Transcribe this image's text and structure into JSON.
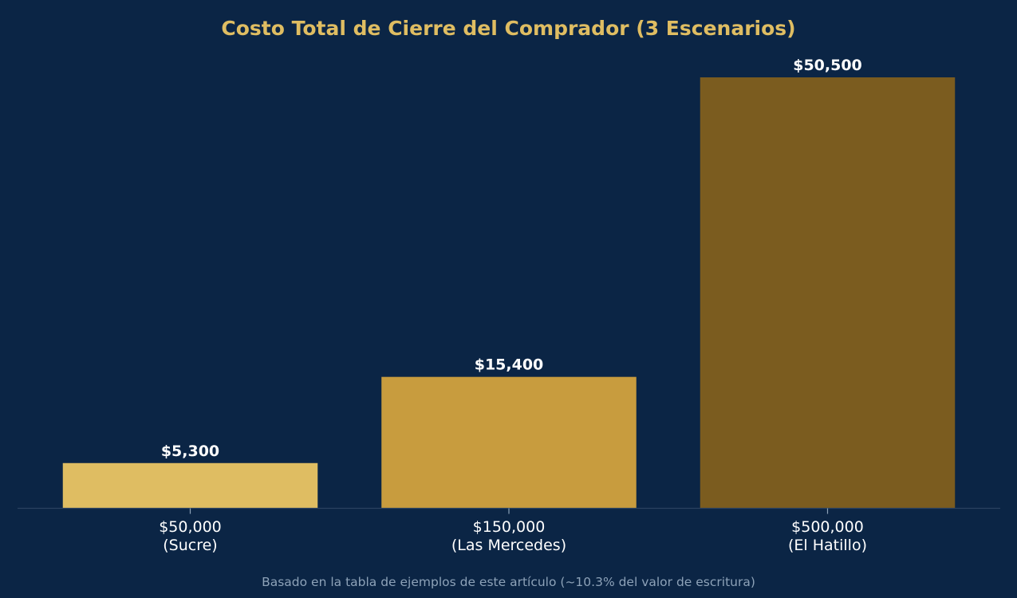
{
  "chart_data": {
    "type": "bar",
    "title": "Costo Total de Cierre del Comprador (3 Escenarios)",
    "categories": [
      [
        "$50,000",
        "(Sucre)"
      ],
      [
        "$150,000",
        "(Las Mercedes)"
      ],
      [
        "$500,000",
        "(El Hatillo)"
      ]
    ],
    "values": [
      5300,
      15400,
      50500
    ],
    "value_labels": [
      "$5,300",
      "$15,400",
      "$50,500"
    ],
    "bar_colors": [
      "#dfbd62",
      "#c89c3e",
      "#7b5c1f"
    ],
    "ylim": [
      0,
      53025
    ],
    "xlabel": "",
    "ylabel": "",
    "grid": false,
    "legend": "none",
    "footnote": "Basado en la tabla de ejemplos de este artículo (~10.3% del valor de escritura)"
  },
  "colors": {
    "background": "#0b2545",
    "title": "#dfbd62",
    "axis_line": "#2b4260",
    "tick": "#8da2b8",
    "text": "#ffffff",
    "footnote": "#8da2b8"
  }
}
